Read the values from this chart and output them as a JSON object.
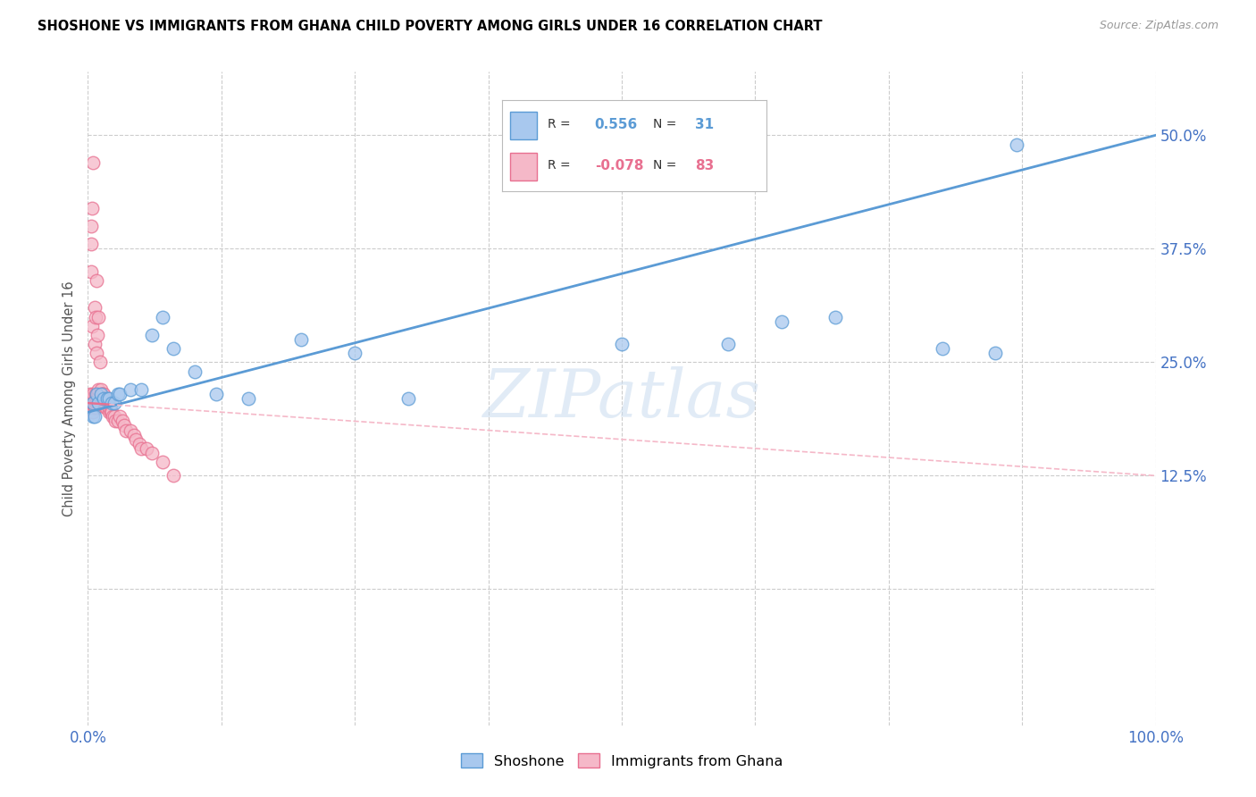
{
  "title": "SHOSHONE VS IMMIGRANTS FROM GHANA CHILD POVERTY AMONG GIRLS UNDER 16 CORRELATION CHART",
  "source": "Source: ZipAtlas.com",
  "ylabel": "Child Poverty Among Girls Under 16",
  "xlim": [
    0.0,
    1.0
  ],
  "ylim": [
    -0.15,
    0.57
  ],
  "xtick_positions": [
    0.0,
    0.125,
    0.25,
    0.375,
    0.5,
    0.625,
    0.75,
    0.875,
    1.0
  ],
  "xtick_labels": [
    "0.0%",
    "",
    "",
    "",
    "",
    "",
    "",
    "",
    "100.0%"
  ],
  "ytick_positions": [
    0.0,
    0.125,
    0.25,
    0.375,
    0.5
  ],
  "ytick_labels": [
    "",
    "12.5%",
    "25.0%",
    "37.5%",
    "50.0%"
  ],
  "blue_fill": "#A8C8EE",
  "blue_edge": "#5B9BD5",
  "pink_fill": "#F5B8C8",
  "pink_edge": "#E87090",
  "blue_line": "#5B9BD5",
  "pink_line_solid": "#E87090",
  "pink_line_dashed": "#F5B8C8",
  "grid_color": "#CCCCCC",
  "watermark_color": "#CADCEF",
  "legend_R_blue": "0.556",
  "legend_N_blue": "31",
  "legend_R_pink": "-0.078",
  "legend_N_pink": "83",
  "shoshone_x": [
    0.005,
    0.005,
    0.006,
    0.008,
    0.01,
    0.012,
    0.015,
    0.018,
    0.02,
    0.022,
    0.025,
    0.028,
    0.03,
    0.04,
    0.05,
    0.06,
    0.07,
    0.08,
    0.1,
    0.12,
    0.15,
    0.2,
    0.25,
    0.3,
    0.5,
    0.6,
    0.65,
    0.7,
    0.8,
    0.85,
    0.87
  ],
  "shoshone_y": [
    0.205,
    0.19,
    0.19,
    0.215,
    0.205,
    0.215,
    0.21,
    0.21,
    0.21,
    0.205,
    0.205,
    0.215,
    0.215,
    0.22,
    0.22,
    0.28,
    0.3,
    0.265,
    0.24,
    0.215,
    0.21,
    0.275,
    0.26,
    0.21,
    0.27,
    0.27,
    0.295,
    0.3,
    0.265,
    0.26,
    0.49
  ],
  "ghana_x": [
    0.001,
    0.001,
    0.001,
    0.002,
    0.002,
    0.002,
    0.002,
    0.003,
    0.003,
    0.003,
    0.003,
    0.003,
    0.004,
    0.004,
    0.004,
    0.004,
    0.005,
    0.005,
    0.005,
    0.005,
    0.005,
    0.005,
    0.006,
    0.006,
    0.006,
    0.006,
    0.007,
    0.007,
    0.007,
    0.007,
    0.007,
    0.008,
    0.008,
    0.008,
    0.008,
    0.009,
    0.009,
    0.009,
    0.009,
    0.01,
    0.01,
    0.01,
    0.01,
    0.01,
    0.011,
    0.011,
    0.012,
    0.012,
    0.012,
    0.013,
    0.013,
    0.014,
    0.014,
    0.015,
    0.015,
    0.015,
    0.016,
    0.016,
    0.017,
    0.017,
    0.018,
    0.019,
    0.02,
    0.02,
    0.021,
    0.022,
    0.023,
    0.025,
    0.026,
    0.028,
    0.03,
    0.032,
    0.034,
    0.036,
    0.04,
    0.043,
    0.045,
    0.048,
    0.05,
    0.055,
    0.06,
    0.07,
    0.08
  ],
  "ghana_y": [
    0.205,
    0.21,
    0.205,
    0.21,
    0.215,
    0.21,
    0.205,
    0.38,
    0.4,
    0.35,
    0.21,
    0.21,
    0.205,
    0.21,
    0.29,
    0.42,
    0.2,
    0.205,
    0.21,
    0.215,
    0.195,
    0.47,
    0.2,
    0.205,
    0.27,
    0.31,
    0.2,
    0.205,
    0.21,
    0.215,
    0.3,
    0.205,
    0.21,
    0.26,
    0.34,
    0.205,
    0.21,
    0.215,
    0.28,
    0.205,
    0.21,
    0.215,
    0.22,
    0.3,
    0.205,
    0.25,
    0.205,
    0.21,
    0.22,
    0.205,
    0.215,
    0.205,
    0.215,
    0.205,
    0.21,
    0.215,
    0.205,
    0.2,
    0.205,
    0.2,
    0.205,
    0.205,
    0.195,
    0.2,
    0.195,
    0.195,
    0.19,
    0.19,
    0.185,
    0.185,
    0.19,
    0.185,
    0.18,
    0.175,
    0.175,
    0.17,
    0.165,
    0.16,
    0.155,
    0.155,
    0.15,
    0.14,
    0.125
  ]
}
